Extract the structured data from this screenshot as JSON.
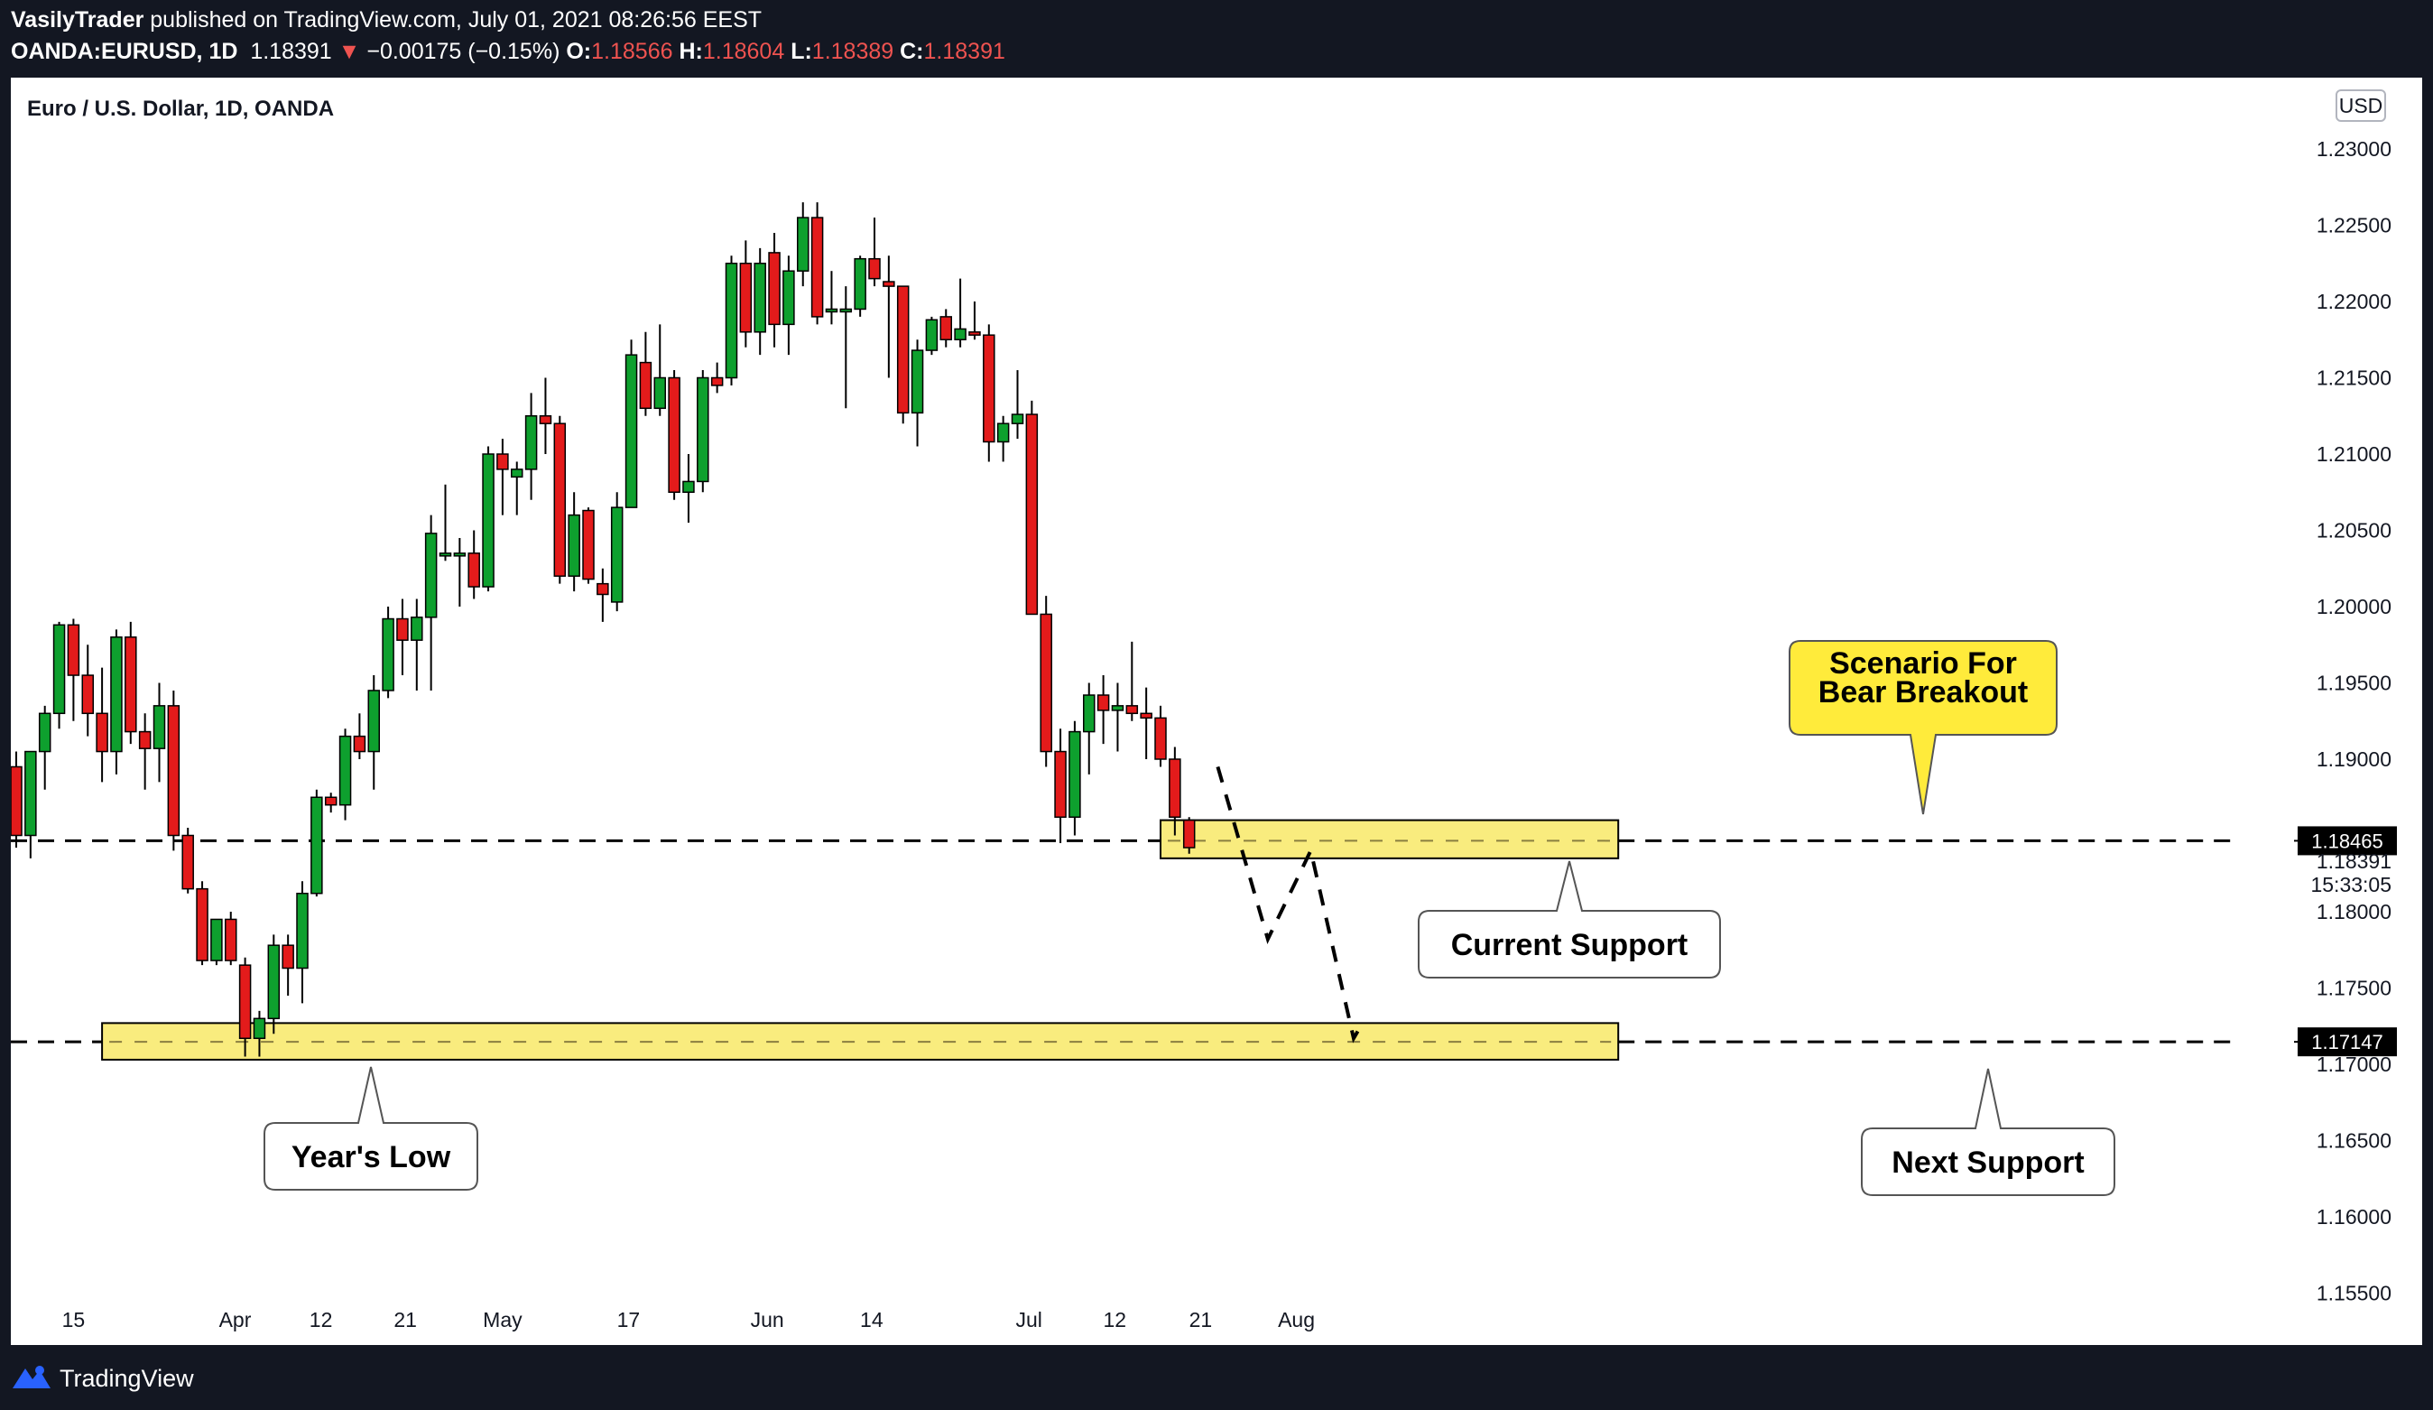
{
  "header": {
    "publisher": "VasilyTrader",
    "published_text": " published on TradingView.com, July 01, 2021 08:26:56 EEST",
    "symbol": "OANDA:EURUSD, 1D",
    "last": "1.18391",
    "change": "−0.00175 (−0.15%)",
    "o_label": "O:",
    "o_value": "1.18566",
    "h_label": "H:",
    "h_value": "1.18604",
    "l_label": "L:",
    "l_value": "1.18389",
    "c_label": "C:",
    "c_value": "1.18391"
  },
  "footer": {
    "brand": "TradingView"
  },
  "colors": {
    "up": "#089981",
    "up_body": "#0ea02e",
    "down_body": "#e31b1b",
    "zone_fill": "#f9ec7e",
    "callout_yellow": "#ffeb3b",
    "background": "#ffffff"
  },
  "chart_data": {
    "type": "candlestick",
    "title": "Euro / U.S. Dollar, 1D, OANDA",
    "currency_badge": "USD",
    "ylim": [
      1.155,
      1.2325
    ],
    "y_ticks": [
      "1.23000",
      "1.22500",
      "1.22000",
      "1.21500",
      "1.21000",
      "1.20500",
      "1.20000",
      "1.19500",
      "1.19000",
      "1.18500",
      "1.18000",
      "1.17500",
      "1.17000",
      "1.16500",
      "1.16000",
      "1.15500"
    ],
    "x_ticks": [
      "15",
      "Apr",
      "12",
      "21",
      "May",
      "17",
      "Jun",
      "14",
      "Jul",
      "12",
      "21",
      "Aug"
    ],
    "candles": [
      {
        "o": 1.1895,
        "h": 1.1905,
        "l": 1.1842,
        "c": 1.185
      },
      {
        "o": 1.185,
        "h": 1.1905,
        "l": 1.1835,
        "c": 1.1905
      },
      {
        "o": 1.1905,
        "h": 1.1935,
        "l": 1.188,
        "c": 1.193
      },
      {
        "o": 1.193,
        "h": 1.199,
        "l": 1.192,
        "c": 1.1988
      },
      {
        "o": 1.1988,
        "h": 1.1992,
        "l": 1.1925,
        "c": 1.1955
      },
      {
        "o": 1.1955,
        "h": 1.1975,
        "l": 1.1915,
        "c": 1.193
      },
      {
        "o": 1.193,
        "h": 1.196,
        "l": 1.1885,
        "c": 1.1905
      },
      {
        "o": 1.1905,
        "h": 1.1985,
        "l": 1.189,
        "c": 1.198
      },
      {
        "o": 1.198,
        "h": 1.199,
        "l": 1.191,
        "c": 1.1918
      },
      {
        "o": 1.1918,
        "h": 1.193,
        "l": 1.188,
        "c": 1.1907
      },
      {
        "o": 1.1907,
        "h": 1.195,
        "l": 1.1885,
        "c": 1.1935
      },
      {
        "o": 1.1935,
        "h": 1.1945,
        "l": 1.184,
        "c": 1.185
      },
      {
        "o": 1.185,
        "h": 1.1855,
        "l": 1.1812,
        "c": 1.1815
      },
      {
        "o": 1.1815,
        "h": 1.182,
        "l": 1.1765,
        "c": 1.1768
      },
      {
        "o": 1.1768,
        "h": 1.1795,
        "l": 1.1765,
        "c": 1.1795
      },
      {
        "o": 1.1795,
        "h": 1.18,
        "l": 1.1765,
        "c": 1.1768
      },
      {
        "o": 1.1765,
        "h": 1.177,
        "l": 1.1705,
        "c": 1.1717
      },
      {
        "o": 1.1717,
        "h": 1.1735,
        "l": 1.1705,
        "c": 1.173
      },
      {
        "o": 1.173,
        "h": 1.1785,
        "l": 1.172,
        "c": 1.1778
      },
      {
        "o": 1.1778,
        "h": 1.1785,
        "l": 1.1745,
        "c": 1.1763
      },
      {
        "o": 1.1763,
        "h": 1.182,
        "l": 1.174,
        "c": 1.1812
      },
      {
        "o": 1.1812,
        "h": 1.188,
        "l": 1.181,
        "c": 1.1875
      },
      {
        "o": 1.1875,
        "h": 1.1878,
        "l": 1.1865,
        "c": 1.187
      },
      {
        "o": 1.187,
        "h": 1.192,
        "l": 1.186,
        "c": 1.1915
      },
      {
        "o": 1.1915,
        "h": 1.193,
        "l": 1.19,
        "c": 1.1905
      },
      {
        "o": 1.1905,
        "h": 1.1955,
        "l": 1.188,
        "c": 1.1945
      },
      {
        "o": 1.1945,
        "h": 1.2,
        "l": 1.194,
        "c": 1.1992
      },
      {
        "o": 1.1992,
        "h": 1.2005,
        "l": 1.1955,
        "c": 1.1978
      },
      {
        "o": 1.1978,
        "h": 1.2005,
        "l": 1.1945,
        "c": 1.1993
      },
      {
        "o": 1.1993,
        "h": 1.206,
        "l": 1.1945,
        "c": 1.2048
      },
      {
        "o": 1.2035,
        "h": 1.208,
        "l": 1.203,
        "c": 1.2035
      },
      {
        "o": 1.2035,
        "h": 1.2045,
        "l": 1.2,
        "c": 1.2035
      },
      {
        "o": 1.2035,
        "h": 1.205,
        "l": 1.2005,
        "c": 1.2013
      },
      {
        "o": 1.2013,
        "h": 1.2105,
        "l": 1.201,
        "c": 1.21
      },
      {
        "o": 1.21,
        "h": 1.211,
        "l": 1.206,
        "c": 1.209
      },
      {
        "o": 1.2085,
        "h": 1.2095,
        "l": 1.206,
        "c": 1.209
      },
      {
        "o": 1.209,
        "h": 1.214,
        "l": 1.207,
        "c": 1.2125
      },
      {
        "o": 1.2125,
        "h": 1.215,
        "l": 1.21,
        "c": 1.212
      },
      {
        "o": 1.212,
        "h": 1.2125,
        "l": 1.2015,
        "c": 1.202
      },
      {
        "o": 1.202,
        "h": 1.2075,
        "l": 1.201,
        "c": 1.206
      },
      {
        "o": 1.2063,
        "h": 1.2065,
        "l": 1.2015,
        "c": 1.2018
      },
      {
        "o": 1.2015,
        "h": 1.2025,
        "l": 1.199,
        "c": 1.2008
      },
      {
        "o": 1.2003,
        "h": 1.2075,
        "l": 1.1997,
        "c": 1.2065
      },
      {
        "o": 1.2065,
        "h": 1.2175,
        "l": 1.2065,
        "c": 1.2165
      },
      {
        "o": 1.216,
        "h": 1.218,
        "l": 1.2125,
        "c": 1.213
      },
      {
        "o": 1.213,
        "h": 1.2185,
        "l": 1.2125,
        "c": 1.215
      },
      {
        "o": 1.215,
        "h": 1.2155,
        "l": 1.207,
        "c": 1.2075
      },
      {
        "o": 1.2075,
        "h": 1.21,
        "l": 1.2055,
        "c": 1.2082
      },
      {
        "o": 1.2082,
        "h": 1.2155,
        "l": 1.2075,
        "c": 1.215
      },
      {
        "o": 1.215,
        "h": 1.216,
        "l": 1.214,
        "c": 1.2145
      },
      {
        "o": 1.215,
        "h": 1.223,
        "l": 1.2145,
        "c": 1.2225
      },
      {
        "o": 1.2225,
        "h": 1.224,
        "l": 1.217,
        "c": 1.218
      },
      {
        "o": 1.218,
        "h": 1.2235,
        "l": 1.2165,
        "c": 1.2225
      },
      {
        "o": 1.2232,
        "h": 1.2245,
        "l": 1.217,
        "c": 1.2185
      },
      {
        "o": 1.2185,
        "h": 1.223,
        "l": 1.2165,
        "c": 1.222
      },
      {
        "o": 1.222,
        "h": 1.2265,
        "l": 1.221,
        "c": 1.2255
      },
      {
        "o": 1.2255,
        "h": 1.2265,
        "l": 1.2185,
        "c": 1.219
      },
      {
        "o": 1.2195,
        "h": 1.222,
        "l": 1.2185,
        "c": 1.2195
      },
      {
        "o": 1.2195,
        "h": 1.221,
        "l": 1.213,
        "c": 1.2195
      },
      {
        "o": 1.2195,
        "h": 1.223,
        "l": 1.219,
        "c": 1.2228
      },
      {
        "o": 1.2228,
        "h": 1.2255,
        "l": 1.221,
        "c": 1.2215
      },
      {
        "o": 1.2213,
        "h": 1.223,
        "l": 1.215,
        "c": 1.221
      },
      {
        "o": 1.221,
        "h": 1.221,
        "l": 1.212,
        "c": 1.2127
      },
      {
        "o": 1.2127,
        "h": 1.2175,
        "l": 1.2105,
        "c": 1.2168
      },
      {
        "o": 1.2168,
        "h": 1.219,
        "l": 1.2165,
        "c": 1.2188
      },
      {
        "o": 1.219,
        "h": 1.2195,
        "l": 1.217,
        "c": 1.2175
      },
      {
        "o": 1.2175,
        "h": 1.2215,
        "l": 1.217,
        "c": 1.2182
      },
      {
        "o": 1.218,
        "h": 1.22,
        "l": 1.2175,
        "c": 1.2178
      },
      {
        "o": 1.2178,
        "h": 1.2185,
        "l": 1.2095,
        "c": 1.2108
      },
      {
        "o": 1.2108,
        "h": 1.2125,
        "l": 1.2095,
        "c": 1.212
      },
      {
        "o": 1.212,
        "h": 1.2155,
        "l": 1.211,
        "c": 1.2126
      },
      {
        "o": 1.2126,
        "h": 1.2135,
        "l": 1.1995,
        "c": 1.1995
      },
      {
        "o": 1.1995,
        "h": 1.2007,
        "l": 1.1895,
        "c": 1.1905
      },
      {
        "o": 1.1905,
        "h": 1.192,
        "l": 1.1845,
        "c": 1.1862
      },
      {
        "o": 1.1862,
        "h": 1.1925,
        "l": 1.185,
        "c": 1.1918
      },
      {
        "o": 1.1918,
        "h": 1.195,
        "l": 1.189,
        "c": 1.1942
      },
      {
        "o": 1.1942,
        "h": 1.1955,
        "l": 1.191,
        "c": 1.1932
      },
      {
        "o": 1.1932,
        "h": 1.195,
        "l": 1.1905,
        "c": 1.1935
      },
      {
        "o": 1.1935,
        "h": 1.1977,
        "l": 1.1925,
        "c": 1.193
      },
      {
        "o": 1.193,
        "h": 1.1947,
        "l": 1.19,
        "c": 1.1927
      },
      {
        "o": 1.1927,
        "h": 1.1935,
        "l": 1.1895,
        "c": 1.19
      },
      {
        "o": 1.19,
        "h": 1.1908,
        "l": 1.185,
        "c": 1.1862
      },
      {
        "o": 1.186,
        "h": 1.1862,
        "l": 1.1838,
        "c": 1.1842
      }
    ],
    "zones": [
      {
        "name": "current-support",
        "top": 1.186,
        "bottom": 1.1835,
        "mid": 1.18465,
        "x_from": 80,
        "x_to": 112
      },
      {
        "name": "next-support",
        "top": 1.1727,
        "bottom": 1.1703,
        "mid": 1.17147,
        "x_from": 6,
        "x_to": 112
      }
    ],
    "price_tags": [
      {
        "text": "1.18465",
        "value": 1.18465
      },
      {
        "text": "1.17147",
        "value": 1.17147
      }
    ],
    "last_price": {
      "text": "1.18391",
      "countdown": "15:33:05",
      "value": 1.18391
    },
    "scenario_path": [
      {
        "x": 84,
        "y": 1.1895
      },
      {
        "x": 87.5,
        "y": 1.1782
      },
      {
        "x": 90.5,
        "y": 1.184
      },
      {
        "x": 93.5,
        "y": 1.1717
      },
      {
        "x": 94,
        "y": 1.1725
      }
    ],
    "callouts": {
      "years_low": "Year's Low",
      "current_support": "Current Support",
      "next_support": "Next Support",
      "scenario_line1": "Scenario For",
      "scenario_line2": "Bear Breakout"
    }
  }
}
